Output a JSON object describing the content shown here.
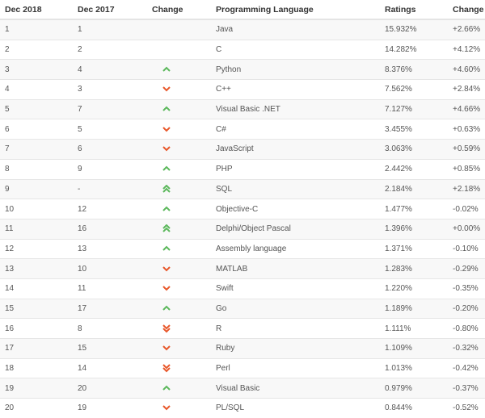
{
  "headers": [
    "Dec 2018",
    "Dec 2017",
    "Change",
    "Programming Language",
    "Ratings",
    "Change"
  ],
  "colors": {
    "up": "#5cb85c",
    "down": "#e8572a"
  },
  "rows": [
    {
      "rank": "1",
      "prev": "1",
      "trend": "none",
      "language": "Java",
      "rating": "15.932%",
      "change": "+2.66%"
    },
    {
      "rank": "2",
      "prev": "2",
      "trend": "none",
      "language": "C",
      "rating": "14.282%",
      "change": "+4.12%"
    },
    {
      "rank": "3",
      "prev": "4",
      "trend": "up",
      "language": "Python",
      "rating": "8.376%",
      "change": "+4.60%"
    },
    {
      "rank": "4",
      "prev": "3",
      "trend": "down",
      "language": "C++",
      "rating": "7.562%",
      "change": "+2.84%"
    },
    {
      "rank": "5",
      "prev": "7",
      "trend": "up",
      "language": "Visual Basic .NET",
      "rating": "7.127%",
      "change": "+4.66%"
    },
    {
      "rank": "6",
      "prev": "5",
      "trend": "down",
      "language": "C#",
      "rating": "3.455%",
      "change": "+0.63%"
    },
    {
      "rank": "7",
      "prev": "6",
      "trend": "down",
      "language": "JavaScript",
      "rating": "3.063%",
      "change": "+0.59%"
    },
    {
      "rank": "8",
      "prev": "9",
      "trend": "up",
      "language": "PHP",
      "rating": "2.442%",
      "change": "+0.85%"
    },
    {
      "rank": "9",
      "prev": "-",
      "trend": "double-up",
      "language": "SQL",
      "rating": "2.184%",
      "change": "+2.18%"
    },
    {
      "rank": "10",
      "prev": "12",
      "trend": "up",
      "language": "Objective-C",
      "rating": "1.477%",
      "change": "-0.02%"
    },
    {
      "rank": "11",
      "prev": "16",
      "trend": "double-up",
      "language": "Delphi/Object Pascal",
      "rating": "1.396%",
      "change": "+0.00%"
    },
    {
      "rank": "12",
      "prev": "13",
      "trend": "up",
      "language": "Assembly language",
      "rating": "1.371%",
      "change": "-0.10%"
    },
    {
      "rank": "13",
      "prev": "10",
      "trend": "down",
      "language": "MATLAB",
      "rating": "1.283%",
      "change": "-0.29%"
    },
    {
      "rank": "14",
      "prev": "11",
      "trend": "down",
      "language": "Swift",
      "rating": "1.220%",
      "change": "-0.35%"
    },
    {
      "rank": "15",
      "prev": "17",
      "trend": "up",
      "language": "Go",
      "rating": "1.189%",
      "change": "-0.20%"
    },
    {
      "rank": "16",
      "prev": "8",
      "trend": "double-down",
      "language": "R",
      "rating": "1.111%",
      "change": "-0.80%"
    },
    {
      "rank": "17",
      "prev": "15",
      "trend": "down",
      "language": "Ruby",
      "rating": "1.109%",
      "change": "-0.32%"
    },
    {
      "rank": "18",
      "prev": "14",
      "trend": "double-down",
      "language": "Perl",
      "rating": "1.013%",
      "change": "-0.42%"
    },
    {
      "rank": "19",
      "prev": "20",
      "trend": "up",
      "language": "Visual Basic",
      "rating": "0.979%",
      "change": "-0.37%"
    },
    {
      "rank": "20",
      "prev": "19",
      "trend": "down",
      "language": "PL/SQL",
      "rating": "0.844%",
      "change": "-0.52%"
    }
  ]
}
